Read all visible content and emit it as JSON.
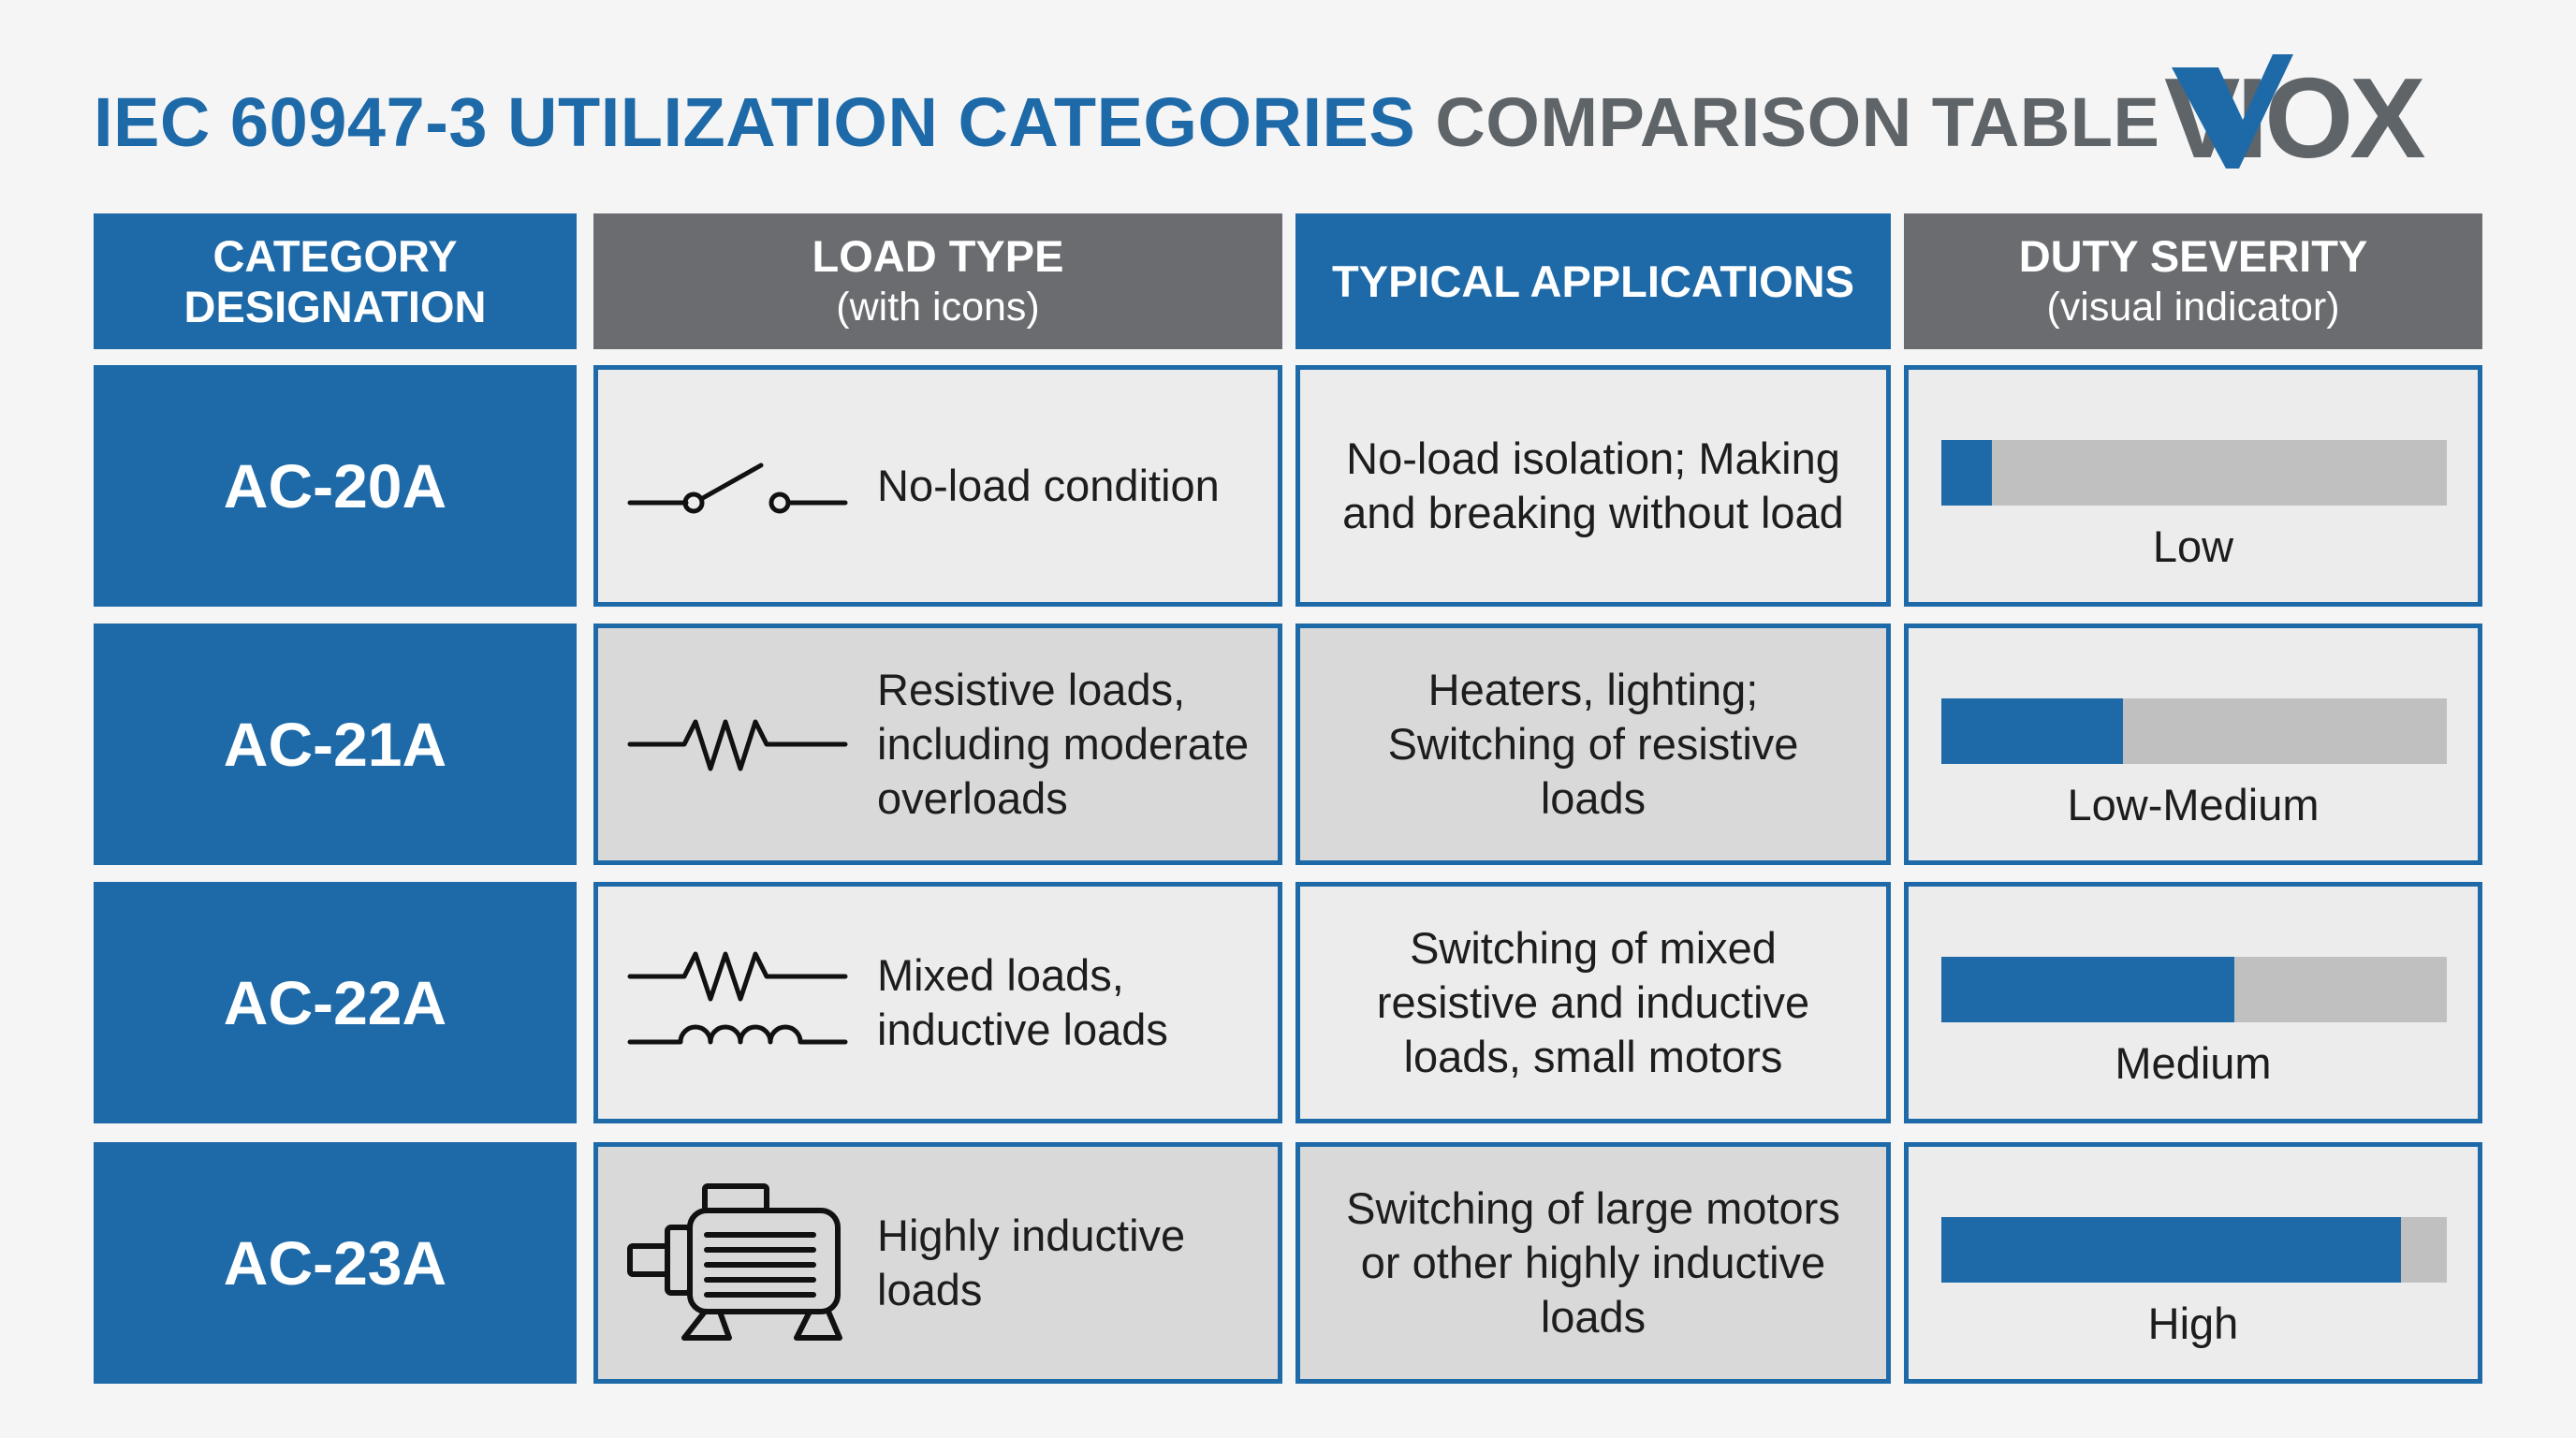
{
  "title": {
    "part1": "IEC 60947-3 UTILIZATION CATEGORIES",
    "part2": "COMPARISON TABLE"
  },
  "logo": {
    "text": "VIOX",
    "icon": "viox-logo"
  },
  "headers": [
    {
      "title": "CATEGORY DESIGNATION",
      "sub": ""
    },
    {
      "title": "LOAD TYPE",
      "sub": "(with icons)"
    },
    {
      "title": "TYPICAL APPLICATIONS",
      "sub": ""
    },
    {
      "title": "DUTY SEVERITY",
      "sub": "(visual indicator)"
    }
  ],
  "rows": [
    {
      "category": "AC-20A",
      "load_icon": "open-switch-icon",
      "load": "No-load condition",
      "applications": "No-load isolation; Making and breaking without load",
      "severity": {
        "label": "Low",
        "fraction": 0.1
      }
    },
    {
      "category": "AC-21A",
      "load_icon": "resistor-icon",
      "load": "Resistive loads, including moderate overloads",
      "applications": "Heaters, lighting; Switching of resistive loads",
      "severity": {
        "label": "Low-Medium",
        "fraction": 0.36
      }
    },
    {
      "category": "AC-22A",
      "load_icon": "resistor-inductor-icon",
      "load": "Mixed loads, inductive loads",
      "applications": "Switching of mixed resistive and inductive loads, small motors",
      "severity": {
        "label": "Medium",
        "fraction": 0.58
      }
    },
    {
      "category": "AC-23A",
      "load_icon": "motor-icon",
      "load": "Highly inductive loads",
      "applications": "Switching of large motors or other highly inductive loads",
      "severity": {
        "label": "High",
        "fraction": 0.91
      }
    }
  ],
  "colors": {
    "accent": "#1e6aa8",
    "header_gray": "#6a6c6f",
    "bar_track": "#c0c0c0"
  }
}
